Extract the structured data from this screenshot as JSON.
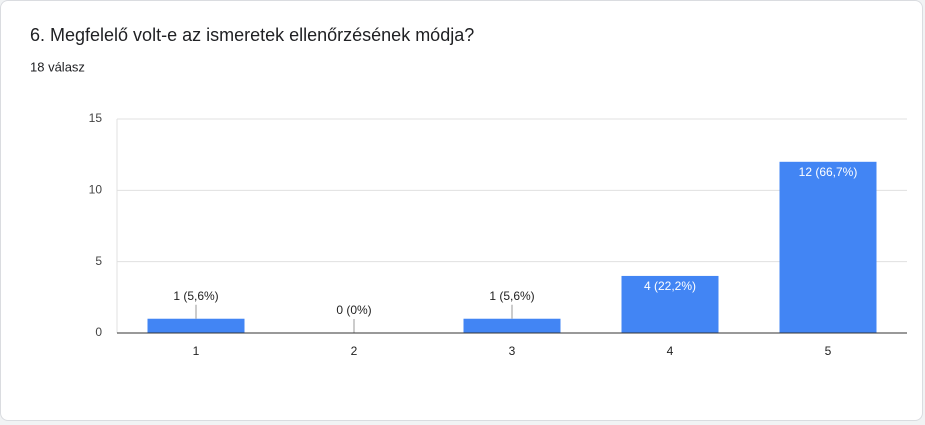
{
  "chart_data": {
    "type": "bar",
    "title": "6. Megfelelő volt-e az ismeretek ellenőrzésének módja?",
    "subtitle": "18 válasz",
    "categories": [
      "1",
      "2",
      "3",
      "4",
      "5"
    ],
    "values": [
      1,
      0,
      1,
      4,
      12
    ],
    "value_labels": [
      "1 (5,6%)",
      "0 (0%)",
      "1 (5,6%)",
      "4 (22,2%)",
      "12 (66,7%)"
    ],
    "color": "#4285f4",
    "ylim": [
      0,
      15
    ],
    "yticks": [
      0,
      5,
      10,
      15
    ],
    "grid": true
  }
}
